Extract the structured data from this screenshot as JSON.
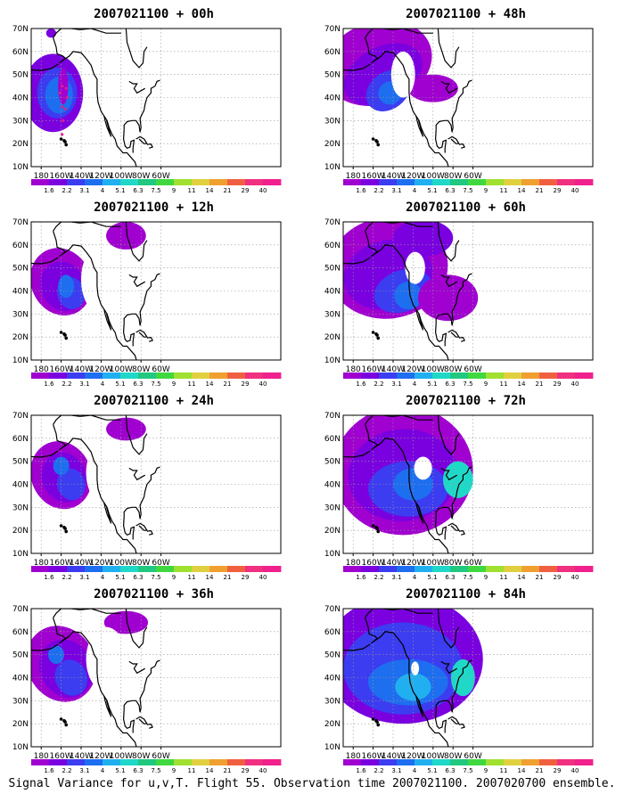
{
  "panels": [
    {
      "title": "2007021100 + 00h",
      "lead_hours": 0
    },
    {
      "title": "2007021100 + 48h",
      "lead_hours": 48
    },
    {
      "title": "2007021100 + 12h",
      "lead_hours": 12
    },
    {
      "title": "2007021100 + 60h",
      "lead_hours": 60
    },
    {
      "title": "2007021100 + 24h",
      "lead_hours": 24
    },
    {
      "title": "2007021100 + 72h",
      "lead_hours": 72
    },
    {
      "title": "2007021100 + 36h",
      "lead_hours": 36
    },
    {
      "title": "2007021100 + 84h",
      "lead_hours": 84
    }
  ],
  "lat_labels": [
    "70N",
    "60N",
    "50N",
    "40N",
    "30N",
    "20N",
    "10N"
  ],
  "lon_labels": [
    "180",
    "160W",
    "140W",
    "120W",
    "100W",
    "80W",
    "60W"
  ],
  "map_extent": {
    "lon_range": [
      "170E",
      "60W"
    ],
    "lat_range": [
      "10N",
      "70N"
    ]
  },
  "colorbar": {
    "labels": [
      "1.6",
      "2.2",
      "3.1",
      "4",
      "5.1",
      "6.3",
      "7.5",
      "9",
      "11",
      "14",
      "21",
      "29",
      "40"
    ],
    "colors": [
      "#a000d0",
      "#7a00e0",
      "#3c3cf0",
      "#1e6ef0",
      "#20b0f0",
      "#20d8c8",
      "#20c880",
      "#40d840",
      "#a0e030",
      "#e0d040",
      "#f0a030",
      "#f06040",
      "#f03080",
      "#f0208c"
    ]
  },
  "map_colors": {
    "background": "#ffffff",
    "coast": "#000000",
    "grid": "#999999"
  },
  "flight_track_color": "#e0208c",
  "caption": "Signal Variance for u,v,T. Flight 55. Observation time 2007021100. 2007020700 ensemble."
}
